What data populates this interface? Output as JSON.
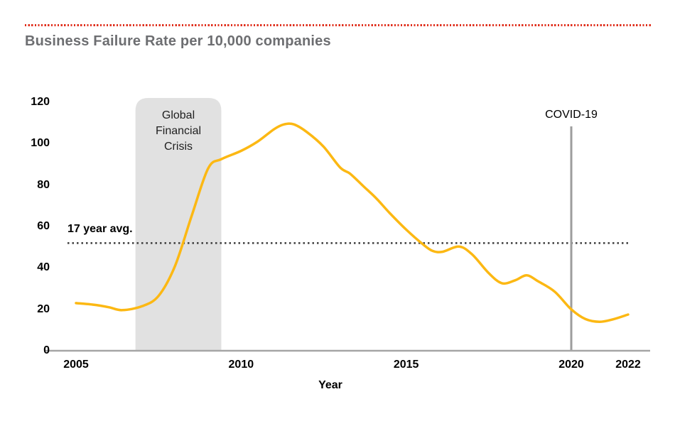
{
  "page": {
    "title": "Business Failure Rate per 10,000 companies",
    "accent_rule_color": "#e0301e",
    "title_color": "#6d6e71",
    "background_color": "#ffffff"
  },
  "chart_data": {
    "type": "line",
    "title": "Business Failure Rate per 10,000 companies",
    "xlabel": "Year",
    "ylabel": "",
    "xlim": [
      2005,
      2022
    ],
    "ylim": [
      0,
      120
    ],
    "grid": false,
    "legend": "none",
    "axis_color": "#a6a6a6",
    "tick_color": "#000000",
    "x_ticks": [
      2005,
      2010,
      2015,
      2020,
      2022
    ],
    "y_ticks": [
      0,
      20,
      40,
      60,
      80,
      100,
      120
    ],
    "series": [
      {
        "name": "Business failure rate per 10,000 companies",
        "color": "#fcb813",
        "points": [
          [
            2005,
            23
          ],
          [
            2005.5,
            22.3
          ],
          [
            2006,
            21
          ],
          [
            2006.4,
            19.6
          ],
          [
            2007,
            21.5
          ],
          [
            2007.5,
            26.5
          ],
          [
            2008,
            41
          ],
          [
            2008.5,
            65
          ],
          [
            2009,
            88
          ],
          [
            2009.4,
            92.5
          ],
          [
            2010,
            96.5
          ],
          [
            2010.5,
            101
          ],
          [
            2011,
            107
          ],
          [
            2011.3,
            109.3
          ],
          [
            2011.6,
            109.3
          ],
          [
            2012,
            105.5
          ],
          [
            2012.5,
            98.5
          ],
          [
            2013,
            88.5
          ],
          [
            2013.3,
            85.5
          ],
          [
            2013.7,
            79.5
          ],
          [
            2014.1,
            73.5
          ],
          [
            2014.5,
            66.5
          ],
          [
            2015,
            58.5
          ],
          [
            2015.5,
            51.5
          ],
          [
            2015.8,
            48.2
          ],
          [
            2016.1,
            47.8
          ],
          [
            2016.6,
            50.3
          ],
          [
            2017,
            46.5
          ],
          [
            2017.5,
            37.5
          ],
          [
            2017.9,
            32.6
          ],
          [
            2018.3,
            34
          ],
          [
            2018.65,
            36.4
          ],
          [
            2019,
            33.5
          ],
          [
            2019.5,
            28.5
          ],
          [
            2020,
            20
          ],
          [
            2020.5,
            15.3
          ],
          [
            2021,
            14
          ],
          [
            2021.5,
            15.3
          ],
          [
            2022,
            17.5
          ]
        ]
      }
    ],
    "annotations": {
      "average_line": {
        "label": "17 year avg.",
        "value": 52,
        "style": "dotted",
        "color": "#3c3c3c"
      },
      "shaded_region": {
        "label": "Global Financial Crisis",
        "x_start": 2006.8,
        "x_end": 2009.4,
        "color": "#e1e1e1"
      },
      "event_line": {
        "label": "COVID-19",
        "x": 2020,
        "color": "#9d9d9d"
      }
    }
  }
}
